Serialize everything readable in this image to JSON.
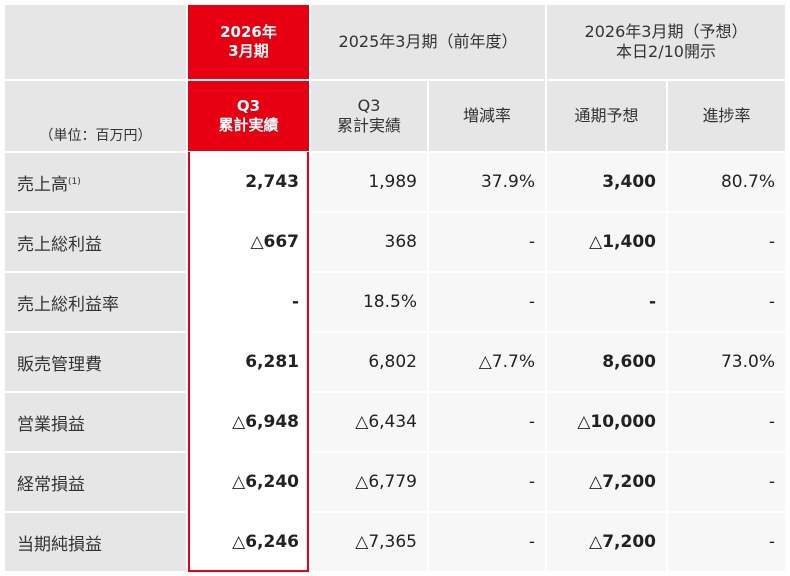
{
  "header": {
    "unit_label": "（単位：百万円）",
    "current_period_line1": "2026年",
    "current_period_line2": "3月期",
    "current_sub_line1": "Q3",
    "current_sub_line2": "累計実績",
    "prior_period": "2025年3月期（前年度）",
    "prior_sub_line1": "Q3",
    "prior_sub_line2": "累計実績",
    "change_rate": "増減率",
    "forecast_period_line1": "2026年3月期（予想）",
    "forecast_period_line2": "本日2/10開示",
    "full_year_forecast": "通期予想",
    "progress_rate": "進捗率"
  },
  "rows": [
    {
      "label": "売上高",
      "note": "(1)",
      "current": "2,743",
      "prior": "1,989",
      "change": "37.9%",
      "forecast": "3,400",
      "progress": "80.7%"
    },
    {
      "label": "売上総利益",
      "note": "",
      "current": "△667",
      "prior": "368",
      "change": "-",
      "forecast": "△1,400",
      "progress": "-"
    },
    {
      "label": "売上総利益率",
      "note": "",
      "current": "-",
      "prior": "18.5%",
      "change": "-",
      "forecast": "-",
      "progress": "-"
    },
    {
      "label": "販売管理費",
      "note": "",
      "current": "6,281",
      "prior": "6,802",
      "change": "△7.7%",
      "forecast": "8,600",
      "progress": "73.0%"
    },
    {
      "label": "営業損益",
      "note": "",
      "current": "△6,948",
      "prior": "△6,434",
      "change": "-",
      "forecast": "△10,000",
      "progress": "-"
    },
    {
      "label": "経常損益",
      "note": "",
      "current": "△6,240",
      "prior": "△6,779",
      "change": "-",
      "forecast": "△7,200",
      "progress": "-"
    },
    {
      "label": "当期純損益",
      "note": "",
      "current": "△6,246",
      "prior": "△7,365",
      "change": "-",
      "forecast": "△7,200",
      "progress": "-"
    }
  ],
  "colors": {
    "accent_red": "#e60012",
    "header_gray": "#e6e6e6",
    "row_bg": "#f7f7f7"
  }
}
